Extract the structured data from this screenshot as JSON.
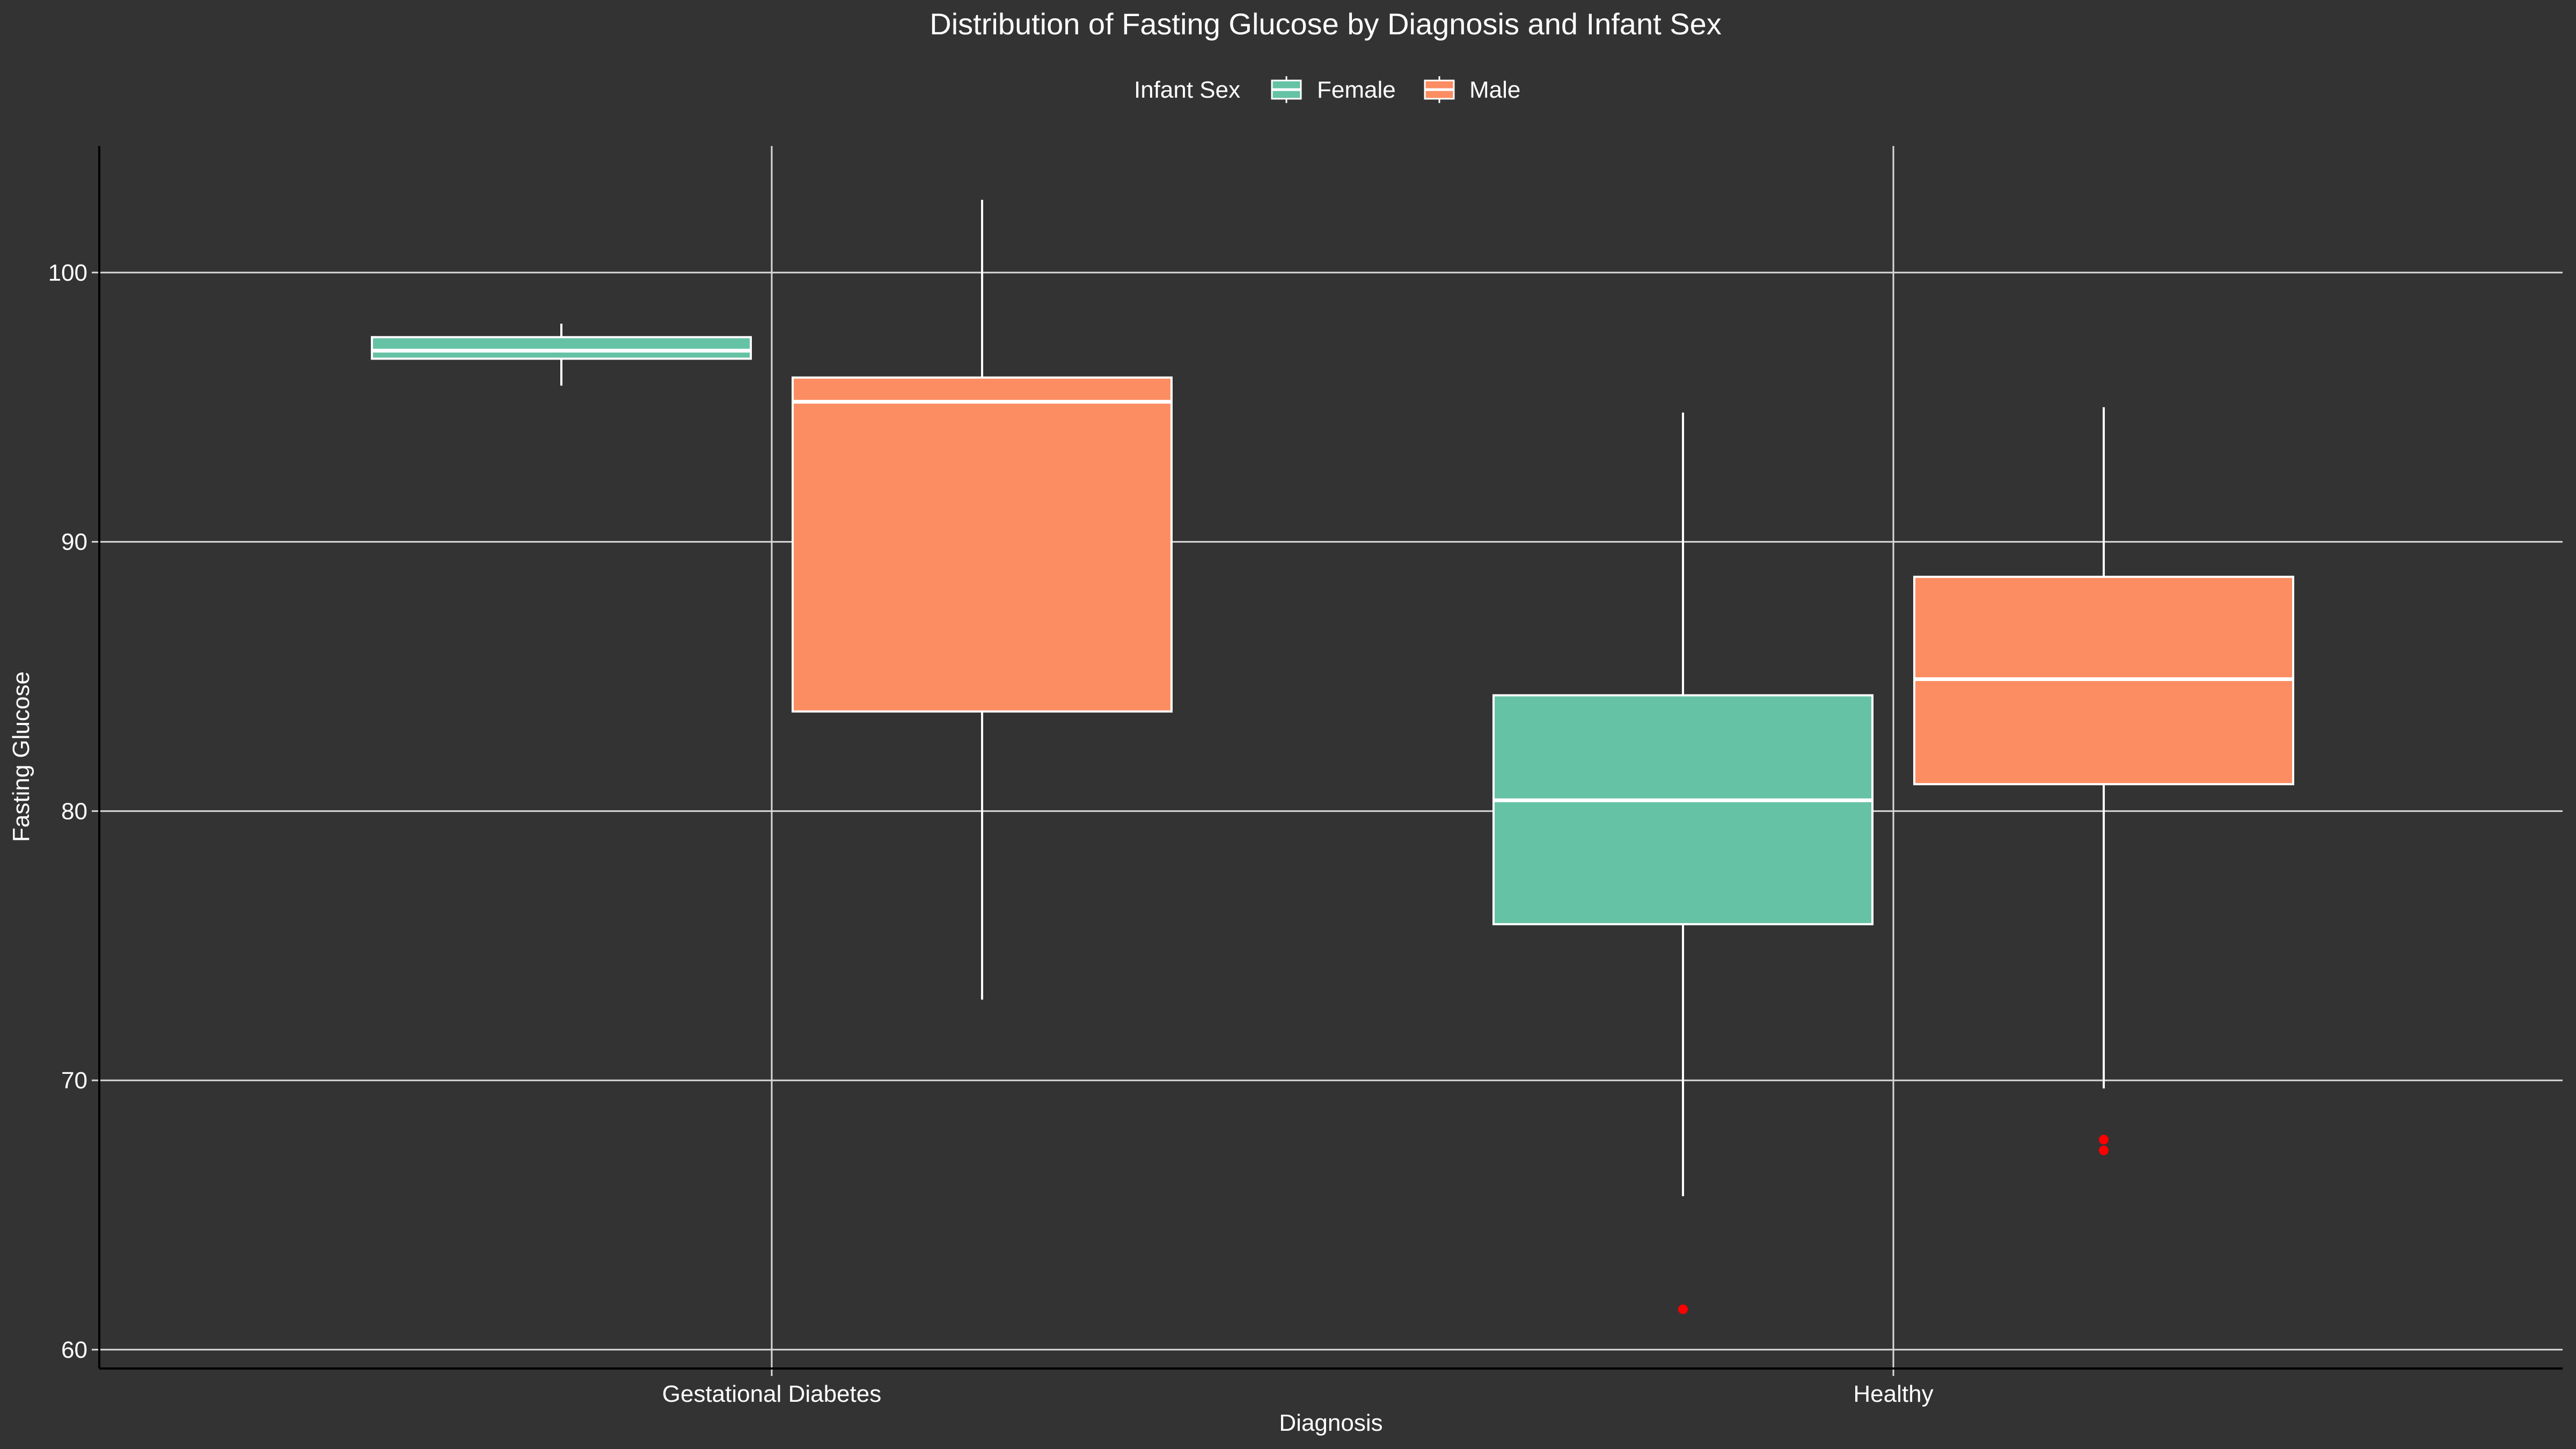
{
  "chart_data": {
    "type": "boxplot",
    "title": "Distribution of Fasting Glucose by Diagnosis and Infant Sex",
    "xlabel": "Diagnosis",
    "ylabel": "Fasting Glucose",
    "ylim": [
      59.3,
      104.7
    ],
    "yticks": [
      60,
      70,
      80,
      90,
      100
    ],
    "ytick_labels": [
      "60",
      "70",
      "80",
      "90",
      "100"
    ],
    "categories": [
      "Gestational Diabetes",
      "Healthy"
    ],
    "grid": true,
    "legend": {
      "title": "Infant Sex",
      "position": "top",
      "entries": [
        "Female",
        "Male"
      ]
    },
    "series": [
      {
        "name": "Female",
        "color": "#66c2a5",
        "boxes": [
          {
            "category": "Gestational Diabetes",
            "whisker_low": 95.8,
            "q1": 96.8,
            "median": 97.1,
            "q3": 97.6,
            "whisker_high": 98.1,
            "outliers": []
          },
          {
            "category": "Healthy",
            "whisker_low": 65.7,
            "q1": 75.8,
            "median": 80.4,
            "q3": 84.3,
            "whisker_high": 94.8,
            "outliers": [
              61.5
            ]
          }
        ]
      },
      {
        "name": "Male",
        "color": "#fc8d62",
        "boxes": [
          {
            "category": "Gestational Diabetes",
            "whisker_low": 73.0,
            "q1": 83.7,
            "median": 95.2,
            "q3": 96.1,
            "whisker_high": 102.7,
            "outliers": []
          },
          {
            "category": "Healthy",
            "whisker_low": 69.7,
            "q1": 81.0,
            "median": 84.9,
            "q3": 88.7,
            "whisker_high": 95.0,
            "outliers": [
              67.8,
              67.4
            ]
          }
        ]
      }
    ],
    "outlier_color": "#ff0000",
    "background_color": "#333333",
    "grid_color": "#d9d9d9",
    "text_color": "#ffffff"
  }
}
